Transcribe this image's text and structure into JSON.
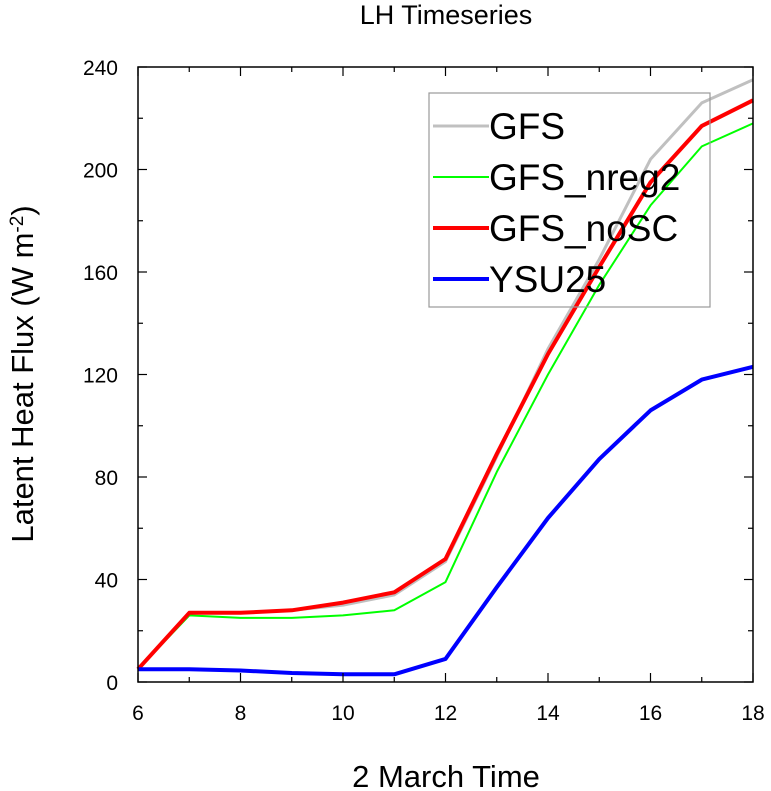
{
  "chart_data": {
    "type": "line",
    "title": "LH Timeseries",
    "xlabel": "2 March Time",
    "ylabel_main": "Latent Heat Flux (W m",
    "ylabel_sup": "-2",
    "ylabel_close": ")",
    "xlim": [
      6,
      18
    ],
    "ylim": [
      0,
      240
    ],
    "xticks": [
      6,
      8,
      10,
      12,
      14,
      16,
      18
    ],
    "yticks": [
      0,
      40,
      80,
      120,
      160,
      200,
      240
    ],
    "grid": false,
    "legend_position": "top-right",
    "x": [
      6,
      7,
      8,
      9,
      10,
      11,
      12,
      13,
      14,
      15,
      16,
      17,
      18
    ],
    "series": [
      {
        "name": "GFS",
        "color": "#c0c0c0",
        "width": 3,
        "values": [
          5,
          27,
          27,
          28,
          30,
          34,
          47,
          88,
          130,
          165,
          204,
          226,
          235
        ]
      },
      {
        "name": "GFS_nreg2",
        "color": "#00ff00",
        "width": 2,
        "values": [
          5,
          26,
          25,
          25,
          26,
          28,
          39,
          82,
          120,
          155,
          186,
          209,
          218
        ]
      },
      {
        "name": "GFS_noSC",
        "color": "#ff0000",
        "width": 4,
        "values": [
          5,
          27,
          27,
          28,
          31,
          35,
          48,
          89,
          128,
          162,
          195,
          217,
          227
        ]
      },
      {
        "name": "YSU25",
        "color": "#0000ff",
        "width": 4,
        "values": [
          5,
          5,
          4.5,
          3.5,
          3,
          3,
          9,
          37,
          64,
          87,
          106,
          118,
          123
        ]
      }
    ]
  }
}
